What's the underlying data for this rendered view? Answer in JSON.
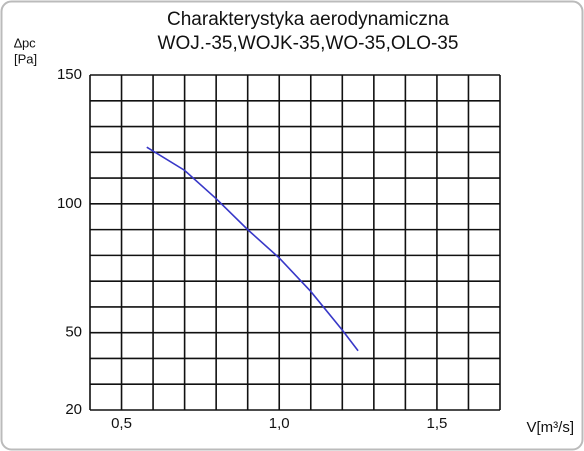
{
  "chart_data": {
    "type": "line",
    "title": "Charakterystyka aerodynamiczna",
    "subtitle": "WOJ.-35,WOJK-35,WO-35,OLO-35",
    "y_label": [
      "∆pc",
      "[Pa]"
    ],
    "x_label": "V[m³/s]",
    "x": [
      0.58,
      0.7,
      0.8,
      0.9,
      1.0,
      1.1,
      1.2,
      1.25
    ],
    "series": [
      {
        "color": "#3838c8",
        "values": [
          122,
          113,
          102,
          90,
          79,
          66,
          51,
          43
        ]
      }
    ],
    "xlim": [
      0.4,
      1.7
    ],
    "ylim": [
      20,
      150
    ],
    "xticks": [
      {
        "value": 0.5,
        "label": "0,5"
      },
      {
        "value": 1.0,
        "label": "1,0"
      },
      {
        "value": 1.5,
        "label": "1,5"
      }
    ],
    "yticks": [
      20,
      50,
      100,
      150
    ],
    "xgrid": [
      0.4,
      0.5,
      0.6,
      0.7,
      0.8,
      0.9,
      1.0,
      1.1,
      1.2,
      1.3,
      1.4,
      1.5,
      1.6,
      1.7
    ],
    "ygrid": [
      20,
      30,
      40,
      50,
      60,
      70,
      80,
      90,
      100,
      110,
      120,
      130,
      140,
      150
    ],
    "grid": true
  }
}
